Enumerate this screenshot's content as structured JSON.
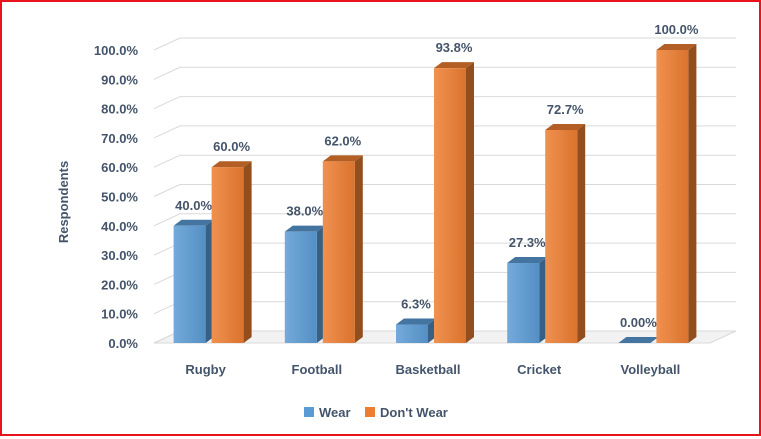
{
  "chart_data": {
    "type": "bar",
    "title": "",
    "xlabel": "",
    "ylabel": "Respondents",
    "categories": [
      "Rugby",
      "Football",
      "Basketball",
      "Cricket",
      "Volleyball"
    ],
    "series": [
      {
        "name": "Wear",
        "values": [
          40.0,
          38.0,
          6.3,
          27.3,
          0.0
        ],
        "labels": [
          "40.0%",
          "38.0%",
          "6.3%",
          "27.3%",
          "0.00%"
        ],
        "color": "#5b9bd5"
      },
      {
        "name": "Don't Wear",
        "values": [
          60.0,
          62.0,
          93.8,
          72.7,
          100.0
        ],
        "labels": [
          "60.0%",
          "62.0%",
          "93.8%",
          "72.7%",
          "100.0%"
        ],
        "color": "#ed7d31"
      }
    ],
    "ylim": [
      0,
      100
    ],
    "yticks": [
      "0.0%",
      "10.0%",
      "20.0%",
      "30.0%",
      "40.0%",
      "50.0%",
      "60.0%",
      "70.0%",
      "80.0%",
      "90.0%",
      "100.0%"
    ],
    "grid": true,
    "legend": "bottom",
    "style": "3d-column"
  },
  "colors": {
    "frame_border": "#e8141b",
    "text": "#44546a",
    "grid": "#d9d9d9"
  }
}
